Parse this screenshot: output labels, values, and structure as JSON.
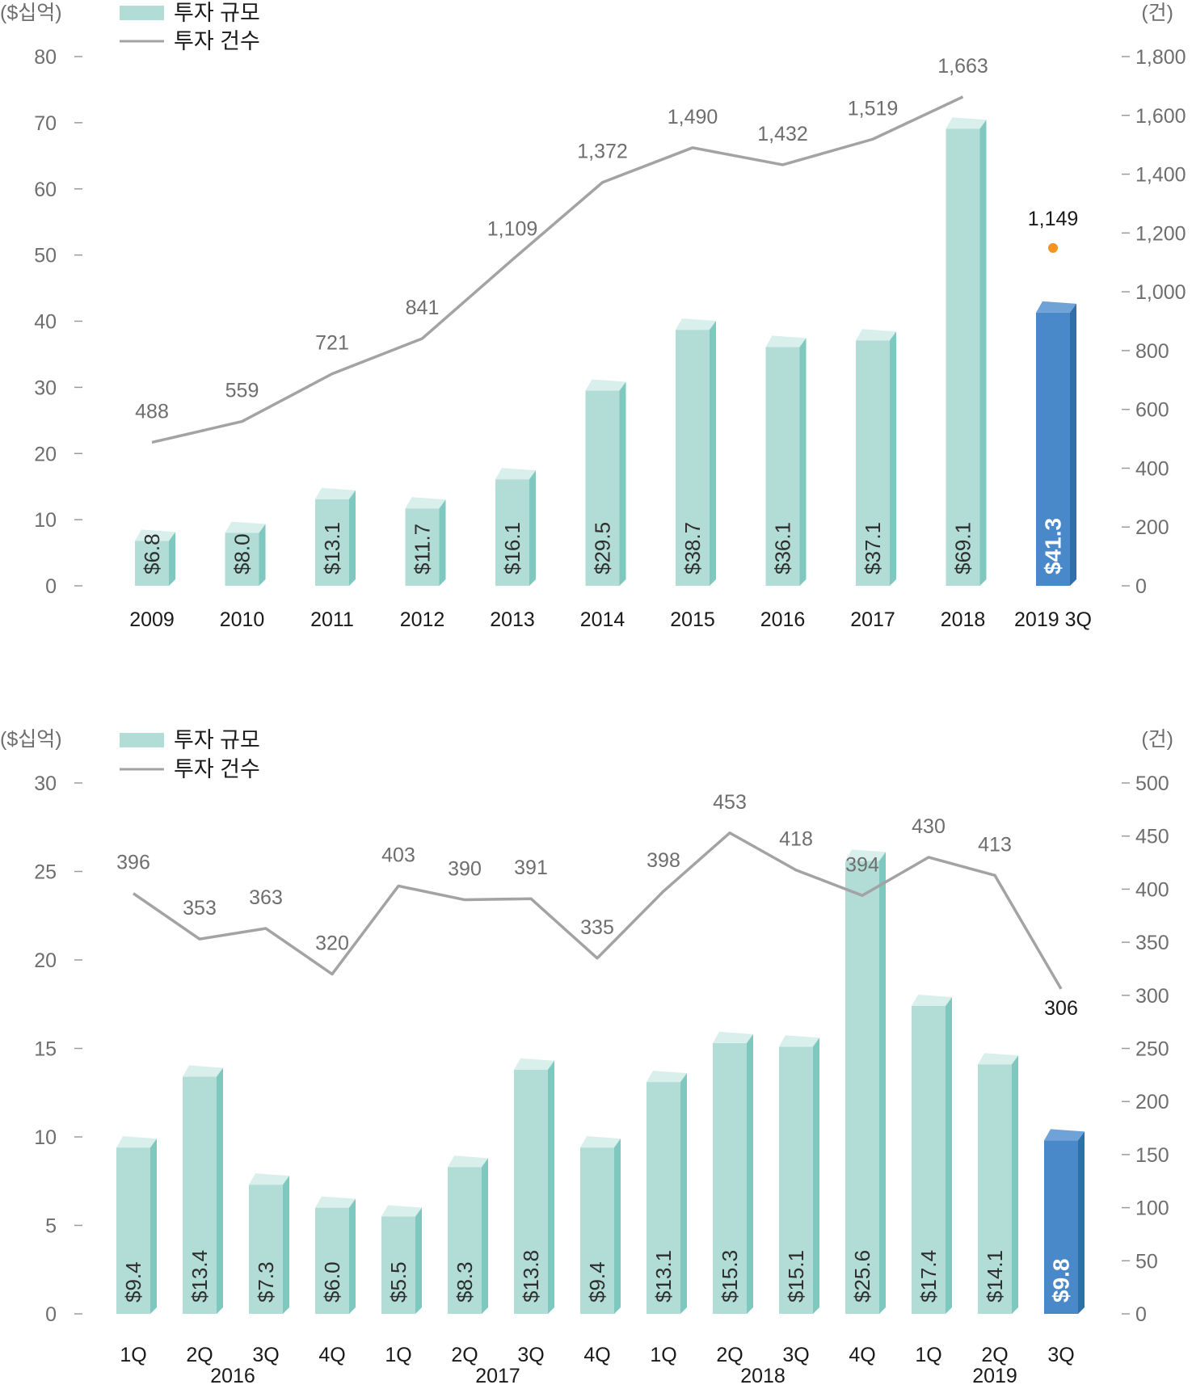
{
  "colors": {
    "bar": "#b2dcd6",
    "bar_top": "#d9efec",
    "bar_side": "#7ec8bf",
    "bar_highlight": "#4a89c9",
    "bar_highlight_top": "#6fa3d8",
    "bar_highlight_side": "#2f6faa",
    "line": "#a3a3a3",
    "dot": "#f39421",
    "axis_tick": "#9a9a9a",
    "text": "#1a1a1a",
    "muted_text": "#6e6e6e"
  },
  "chart_data": [
    {
      "type": "bar",
      "left_unit": "($십억)",
      "right_unit": "(건)",
      "legend": {
        "bar": "투자 규모",
        "line": "투자 건수"
      },
      "categories": [
        "2009",
        "2010",
        "2011",
        "2012",
        "2013",
        "2014",
        "2015",
        "2016",
        "2017",
        "2018",
        "2019 3Q"
      ],
      "bar_values": [
        6.8,
        8.0,
        13.1,
        11.7,
        16.1,
        29.5,
        38.7,
        36.1,
        37.1,
        69.1,
        41.3
      ],
      "bar_labels": [
        "$6.8",
        "$8.0",
        "$13.1",
        "$11.7",
        "$16.1",
        "$29.5",
        "$38.7",
        "$36.1",
        "$37.1",
        "$69.1",
        "$41.3"
      ],
      "highlight_index": 10,
      "line_values": [
        488,
        559,
        721,
        841,
        1109,
        1372,
        1490,
        1432,
        1519,
        1663,
        1149
      ],
      "line_labels": [
        "488",
        "559",
        "721",
        "841",
        "1,109",
        "1,372",
        "1,490",
        "1,432",
        "1,519",
        "1,663",
        "1,149"
      ],
      "line_connected_count": 10,
      "left_axis": {
        "min": 0,
        "max": 80,
        "ticks": [
          "0",
          "10",
          "20",
          "30",
          "40",
          "50",
          "60",
          "70",
          "80"
        ]
      },
      "right_axis": {
        "min": 0,
        "max": 1800,
        "ticks": [
          "0",
          "200",
          "400",
          "600",
          "800",
          "1,000",
          "1,200",
          "1,400",
          "1,600",
          "1,800"
        ]
      },
      "grid": false,
      "legend_position": "top-left"
    },
    {
      "type": "bar",
      "left_unit": "($십억)",
      "right_unit": "(건)",
      "legend": {
        "bar": "투자 규모",
        "line": "투자 건수"
      },
      "categories": [
        "1Q",
        "2Q",
        "3Q",
        "4Q",
        "1Q",
        "2Q",
        "3Q",
        "4Q",
        "1Q",
        "2Q",
        "3Q",
        "4Q",
        "1Q",
        "2Q",
        "3Q"
      ],
      "year_labels": [
        "2016",
        "2017",
        "2018",
        "2019"
      ],
      "bar_values": [
        9.4,
        13.4,
        7.3,
        6.0,
        5.5,
        8.3,
        13.8,
        9.4,
        13.1,
        15.3,
        15.1,
        25.6,
        17.4,
        14.1,
        9.8
      ],
      "bar_labels": [
        "$9.4",
        "$13.4",
        "$7.3",
        "$6.0",
        "$5.5",
        "$8.3",
        "$13.8",
        "$9.4",
        "$13.1",
        "$15.3",
        "$15.1",
        "$25.6",
        "$17.4",
        "$14.1",
        "$9.8"
      ],
      "highlight_index": 14,
      "line_values": [
        396,
        353,
        363,
        320,
        403,
        390,
        391,
        335,
        398,
        453,
        418,
        394,
        430,
        413,
        306
      ],
      "line_labels": [
        "396",
        "353",
        "363",
        "320",
        "403",
        "390",
        "391",
        "335",
        "398",
        "453",
        "418",
        "394",
        "430",
        "413",
        "306"
      ],
      "line_connected_count": 15,
      "left_axis": {
        "min": 0,
        "max": 30,
        "ticks": [
          "0",
          "5",
          "10",
          "15",
          "20",
          "25",
          "30"
        ]
      },
      "right_axis": {
        "min": 0,
        "max": 500,
        "ticks": [
          "0",
          "50",
          "100",
          "150",
          "200",
          "250",
          "300",
          "350",
          "400",
          "450",
          "500"
        ]
      },
      "grid": false,
      "legend_position": "top-left"
    }
  ]
}
